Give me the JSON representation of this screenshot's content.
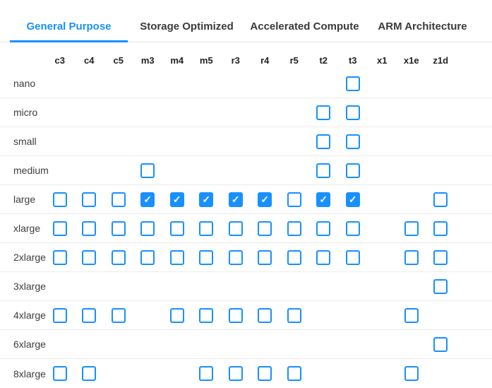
{
  "colors": {
    "accent": "#1890ff",
    "tab_inactive_text": "#3a3a3a",
    "header_text": "#222222",
    "row_label_text": "#3d3d3d",
    "separator": "#ededed",
    "tabbar_border": "#e2e2e2",
    "checkmark_color": "#ffffff"
  },
  "icons": {
    "check_icon": "✓"
  },
  "tabs": [
    {
      "label": "General Purpose",
      "active": true
    },
    {
      "label": "Storage Optimized",
      "active": false
    },
    {
      "label": "Accelerated Compute",
      "active": false
    },
    {
      "label": "ARM Architecture",
      "active": false
    }
  ],
  "matrix": {
    "columns": [
      "c3",
      "c4",
      "c5",
      "m3",
      "m4",
      "m5",
      "r3",
      "r4",
      "r5",
      "t2",
      "t3",
      "x1",
      "x1e",
      "z1d"
    ],
    "rows": [
      {
        "label": "nano",
        "cells": [
          "",
          "",
          "",
          "",
          "",
          "",
          "",
          "",
          "",
          "",
          "unchecked",
          "",
          "",
          ""
        ]
      },
      {
        "label": "micro",
        "cells": [
          "",
          "",
          "",
          "",
          "",
          "",
          "",
          "",
          "",
          "unchecked",
          "unchecked",
          "",
          "",
          ""
        ]
      },
      {
        "label": "small",
        "cells": [
          "",
          "",
          "",
          "",
          "",
          "",
          "",
          "",
          "",
          "unchecked",
          "unchecked",
          "",
          "",
          ""
        ]
      },
      {
        "label": "medium",
        "cells": [
          "",
          "",
          "",
          "unchecked",
          "",
          "",
          "",
          "",
          "",
          "unchecked",
          "unchecked",
          "",
          "",
          ""
        ]
      },
      {
        "label": "large",
        "cells": [
          "unchecked",
          "unchecked",
          "unchecked",
          "checked",
          "checked",
          "checked",
          "checked",
          "checked",
          "unchecked",
          "checked",
          "checked",
          "",
          "",
          "unchecked"
        ]
      },
      {
        "label": "xlarge",
        "cells": [
          "unchecked",
          "unchecked",
          "unchecked",
          "unchecked",
          "unchecked",
          "unchecked",
          "unchecked",
          "unchecked",
          "unchecked",
          "unchecked",
          "unchecked",
          "",
          "unchecked",
          "unchecked"
        ]
      },
      {
        "label": "2xlarge",
        "cells": [
          "unchecked",
          "unchecked",
          "unchecked",
          "unchecked",
          "unchecked",
          "unchecked",
          "unchecked",
          "unchecked",
          "unchecked",
          "unchecked",
          "unchecked",
          "",
          "unchecked",
          "unchecked"
        ]
      },
      {
        "label": "3xlarge",
        "cells": [
          "",
          "",
          "",
          "",
          "",
          "",
          "",
          "",
          "",
          "",
          "",
          "",
          "",
          "unchecked"
        ]
      },
      {
        "label": "4xlarge",
        "cells": [
          "unchecked",
          "unchecked",
          "unchecked",
          "",
          "unchecked",
          "unchecked",
          "unchecked",
          "unchecked",
          "unchecked",
          "",
          "",
          "",
          "unchecked",
          ""
        ]
      },
      {
        "label": "6xlarge",
        "cells": [
          "",
          "",
          "",
          "",
          "",
          "",
          "",
          "",
          "",
          "",
          "",
          "",
          "",
          "unchecked"
        ]
      },
      {
        "label": "8xlarge",
        "cells": [
          "unchecked",
          "unchecked",
          "",
          "",
          "",
          "unchecked",
          "unchecked",
          "unchecked",
          "unchecked",
          "",
          "",
          "",
          "unchecked",
          ""
        ]
      }
    ]
  }
}
